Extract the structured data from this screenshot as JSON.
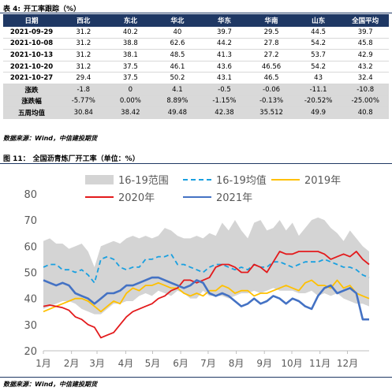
{
  "table": {
    "caption_label": "表 4:",
    "caption_title": "开工率跟踪（%）",
    "headers": [
      "日期",
      "西北",
      "东北",
      "华北",
      "华东",
      "华南",
      "山东",
      "全国平均"
    ],
    "rows": [
      [
        "2021-09-29",
        "31.2",
        "40.2",
        "40",
        "39.7",
        "29.5",
        "44.5",
        "39.7"
      ],
      [
        "2021-10-08",
        "31.2",
        "38.8",
        "62.6",
        "44.2",
        "27.8",
        "54.2",
        "45.8"
      ],
      [
        "2021-10-13",
        "31.2",
        "38.1",
        "48.5",
        "41.3",
        "27.2",
        "53.7",
        "42.9"
      ],
      [
        "2021-10-20",
        "31.2",
        "37.5",
        "46.1",
        "43.6",
        "46.56",
        "54.2",
        "43.2"
      ],
      [
        "2021-10-27",
        "29.4",
        "37.5",
        "50.2",
        "43.1",
        "46.5",
        "43",
        "32.4"
      ]
    ],
    "summary_rows": [
      [
        "涨跌",
        "-1.8",
        "0",
        "4.1",
        "-0.5",
        "-0.06",
        "-11.1",
        "-10.8"
      ],
      [
        "涨跌幅",
        "-5.77%",
        "0.00%",
        "8.89%",
        "-1.15%",
        "-0.13%",
        "-20.52%",
        "-25.00%"
      ],
      [
        "五周均值",
        "30.84",
        "38.42",
        "49.48",
        "42.38",
        "35.512",
        "49.9",
        "40.8"
      ]
    ],
    "source": "数据来源：Wind，中信建投期货"
  },
  "figure": {
    "caption_label": "图 11：",
    "caption_title": "全国沥青炼厂开工率（单位：%）",
    "source": "数据来源：Wind，中信建投期货"
  },
  "chart_data": {
    "type": "line",
    "xlabel": "",
    "ylabel": "",
    "ylim": [
      20,
      80
    ],
    "yticks": [
      20,
      30,
      40,
      50,
      60,
      70,
      80
    ],
    "xlim": [
      0,
      51
    ],
    "x_ticks": [
      {
        "label": "1月",
        "week": 0
      },
      {
        "label": "2月",
        "week": 4.4
      },
      {
        "label": "3月",
        "week": 8.4
      },
      {
        "label": "4月",
        "week": 12.9
      },
      {
        "label": "5月",
        "week": 17.1
      },
      {
        "label": "6月",
        "week": 21.5
      },
      {
        "label": "7月",
        "week": 25.8
      },
      {
        "label": "8月",
        "week": 30.2
      },
      {
        "label": "9月",
        "week": 34.6
      },
      {
        "label": "10月",
        "week": 38.9
      },
      {
        "label": "11月",
        "week": 43.3
      },
      {
        "label": "12月",
        "week": 47.6
      }
    ],
    "grid": false,
    "legend": "top",
    "colors": {
      "range": "#d4d4d4",
      "avg": "#1aa0e0",
      "y2019": "#ffc000",
      "y2020": "#e31a1c",
      "y2021": "#4472c4",
      "axis": "#bfbfbf",
      "tick_text": "#595959"
    },
    "range_band": {
      "name": "16-19范围",
      "upper": [
        62,
        63,
        61,
        61,
        59,
        60,
        61,
        58,
        52,
        60,
        61,
        62,
        61,
        63,
        64,
        63,
        64,
        63,
        64,
        67,
        66,
        64,
        63,
        63,
        64,
        63,
        65,
        64,
        69,
        66,
        70,
        66,
        63,
        69,
        70,
        66,
        67,
        70,
        66,
        69,
        64,
        67,
        70,
        71,
        70,
        67,
        65,
        62,
        66,
        63,
        60,
        58
      ],
      "lower": [
        36,
        37,
        38,
        39,
        39,
        38,
        36,
        35,
        34,
        34,
        36,
        38,
        38,
        39,
        39,
        41,
        42,
        41,
        43,
        42,
        41,
        43,
        42,
        40,
        40,
        43,
        41,
        41,
        41,
        40,
        41,
        42,
        42,
        43,
        42,
        43,
        44,
        43,
        43,
        43,
        42,
        42,
        43,
        41,
        42,
        41,
        42,
        40,
        39,
        38,
        38,
        37
      ]
    },
    "series": [
      {
        "name": "16-19均值",
        "key": "avg",
        "style": "dashed",
        "values": [
          52,
          53,
          53,
          51,
          51,
          50,
          51,
          49,
          46,
          55,
          56,
          55,
          52,
          51,
          52,
          52,
          55,
          55,
          56,
          56,
          57,
          53,
          53,
          52,
          51,
          50,
          52,
          53,
          53,
          52,
          51,
          52,
          51,
          53,
          52,
          52,
          54,
          54,
          53,
          52,
          53,
          54,
          54,
          54,
          55,
          54,
          53,
          52,
          52,
          51,
          49,
          48
        ]
      },
      {
        "name": "2019年",
        "key": "y2019",
        "style": "solid",
        "values": [
          35,
          36,
          37,
          38,
          39,
          40,
          40,
          39,
          37,
          35,
          37,
          39,
          38,
          42,
          44,
          43,
          45,
          45,
          46,
          45,
          44,
          44,
          42,
          41,
          42,
          41,
          43,
          43,
          45,
          44,
          42,
          43,
          43,
          41,
          42,
          42,
          43,
          44,
          45,
          44,
          43,
          46,
          47,
          45,
          45,
          44,
          47,
          44,
          45,
          42,
          41,
          40
        ]
      },
      {
        "name": "2020年",
        "key": "y2020",
        "style": "solid",
        "values": [
          37,
          37.5,
          37,
          36.5,
          35.5,
          33,
          32,
          30,
          29,
          25,
          26,
          27,
          30,
          33,
          35,
          36,
          37,
          38,
          40,
          41,
          43,
          44,
          47,
          47,
          46,
          47,
          48,
          52,
          53,
          53,
          52,
          50,
          50,
          53,
          52,
          50,
          54,
          58,
          57,
          57,
          58,
          58,
          58,
          58,
          57,
          55,
          56,
          57,
          56,
          58,
          55,
          53
        ]
      },
      {
        "name": "2021年",
        "key": "y2021",
        "style": "solid",
        "values": [
          47,
          46,
          45,
          46,
          45,
          42,
          41,
          40,
          38,
          40,
          42,
          42,
          43,
          45,
          45,
          46,
          47,
          48,
          48,
          47,
          46,
          45,
          44,
          45,
          47,
          46,
          42,
          41,
          42,
          41,
          39,
          37,
          38,
          40,
          38,
          39,
          41,
          40,
          38,
          40,
          39,
          37,
          36,
          41,
          44,
          45,
          42,
          43,
          44,
          42,
          32,
          32
        ]
      }
    ]
  }
}
